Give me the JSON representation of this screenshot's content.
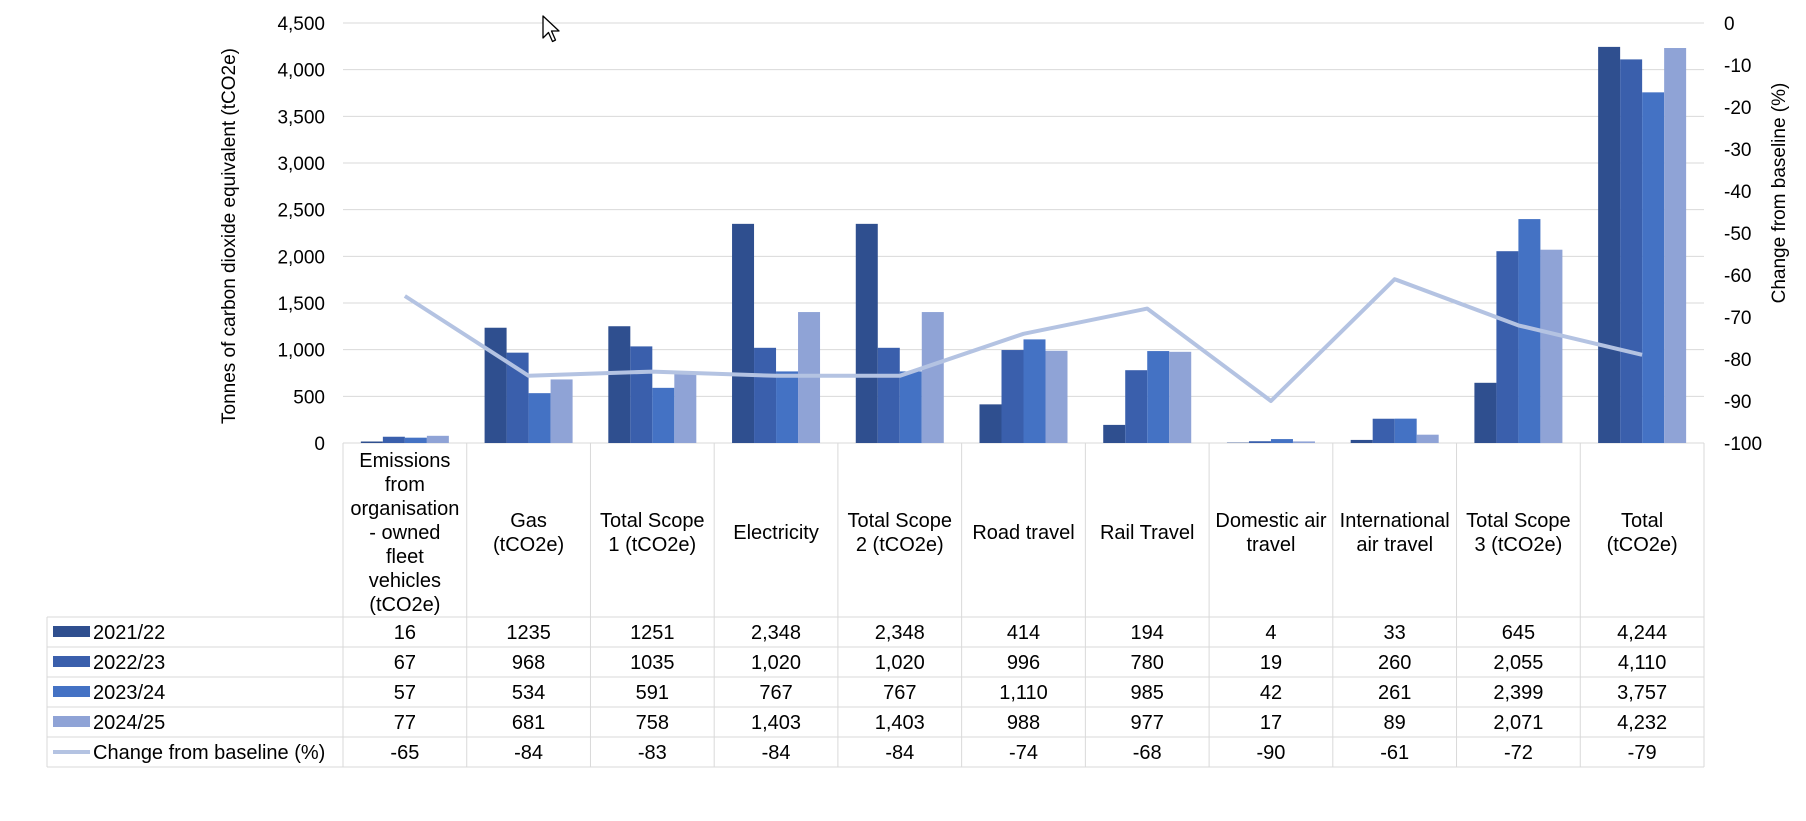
{
  "chart_data": {
    "type": "bar",
    "title": "",
    "categories": [
      "Emissions from organisation - owned fleet vehicles (tCO2e)",
      "Gas (tCO2e)",
      "Total Scope 1 (tCO2e)",
      "Electricity",
      "Total Scope 2 (tCO2e)",
      "Road travel",
      "Rail Travel",
      "Domestic air travel",
      "International air travel",
      "Total Scope 3 (tCO2e)",
      "Total (tCO2e)"
    ],
    "category_lines": [
      [
        "Emissions",
        "from",
        "organisation",
        "- owned",
        "fleet",
        "vehicles",
        "(tCO2e)"
      ],
      [
        "Gas",
        "(tCO2e)"
      ],
      [
        "Total Scope",
        "1 (tCO2e)"
      ],
      [
        "Electricity"
      ],
      [
        "Total Scope",
        "2 (tCO2e)"
      ],
      [
        "Road travel"
      ],
      [
        "Rail Travel"
      ],
      [
        "Domestic air",
        "travel"
      ],
      [
        "International",
        "air travel"
      ],
      [
        "Total Scope",
        "3 (tCO2e)"
      ],
      [
        "Total",
        "(tCO2e)"
      ]
    ],
    "series": [
      {
        "name": "2021/22",
        "type": "bar",
        "color": "#2f4f8f",
        "values": [
          16,
          1235,
          1251,
          2348,
          2348,
          414,
          194,
          4,
          33,
          645,
          4244
        ],
        "labels": [
          "16",
          "1235",
          "1251",
          "2,348",
          "2,348",
          "414",
          "194",
          "4",
          "33",
          "645",
          "4,244"
        ]
      },
      {
        "name": "2022/23",
        "type": "bar",
        "color": "#3a5fac",
        "values": [
          67,
          968,
          1035,
          1020,
          1020,
          996,
          780,
          19,
          260,
          2055,
          4110
        ],
        "labels": [
          "67",
          "968",
          "1035",
          "1,020",
          "1,020",
          "996",
          "780",
          "19",
          "260",
          "2,055",
          "4,110"
        ]
      },
      {
        "name": "2023/24",
        "type": "bar",
        "color": "#4472c4",
        "values": [
          57,
          534,
          591,
          767,
          767,
          1110,
          985,
          42,
          261,
          2399,
          3757
        ],
        "labels": [
          "57",
          "534",
          "591",
          "767",
          "767",
          "1,110",
          "985",
          "42",
          "261",
          "2,399",
          "3,757"
        ]
      },
      {
        "name": "2024/25",
        "type": "bar",
        "color": "#8fa3d6",
        "values": [
          77,
          681,
          758,
          1403,
          1403,
          988,
          977,
          17,
          89,
          2071,
          4232
        ],
        "labels": [
          "77",
          "681",
          "758",
          "1,403",
          "1,403",
          "988",
          "977",
          "17",
          "89",
          "2,071",
          "4,232"
        ]
      },
      {
        "name": "Change from baseline (%)",
        "type": "line",
        "axis": "secondary",
        "color": "#b4c3e2",
        "values": [
          -65,
          -84,
          -83,
          -84,
          -84,
          -74,
          -68,
          -90,
          -61,
          -72,
          -79
        ],
        "labels": [
          "-65",
          "-84",
          "-83",
          "-84",
          "-84",
          "-74",
          "-68",
          "-90",
          "-61",
          "-72",
          "-79"
        ]
      }
    ],
    "ylabel": "Tonnes of carbon dioxide equivalent (tCO2e)",
    "ylim": [
      0,
      4500
    ],
    "yticks": [
      "0",
      "500",
      "1,000",
      "1,500",
      "2,000",
      "2,500",
      "3,000",
      "3,500",
      "4,000",
      "4,500"
    ],
    "y2label": "Change from baseline (%)",
    "y2lim": [
      -100,
      0
    ],
    "y2ticks": [
      "-100",
      "-90",
      "-80",
      "-70",
      "-60",
      "-50",
      "-40",
      "-30",
      "-20",
      "-10",
      "0"
    ],
    "grid": true,
    "legend": "data table below chart"
  }
}
